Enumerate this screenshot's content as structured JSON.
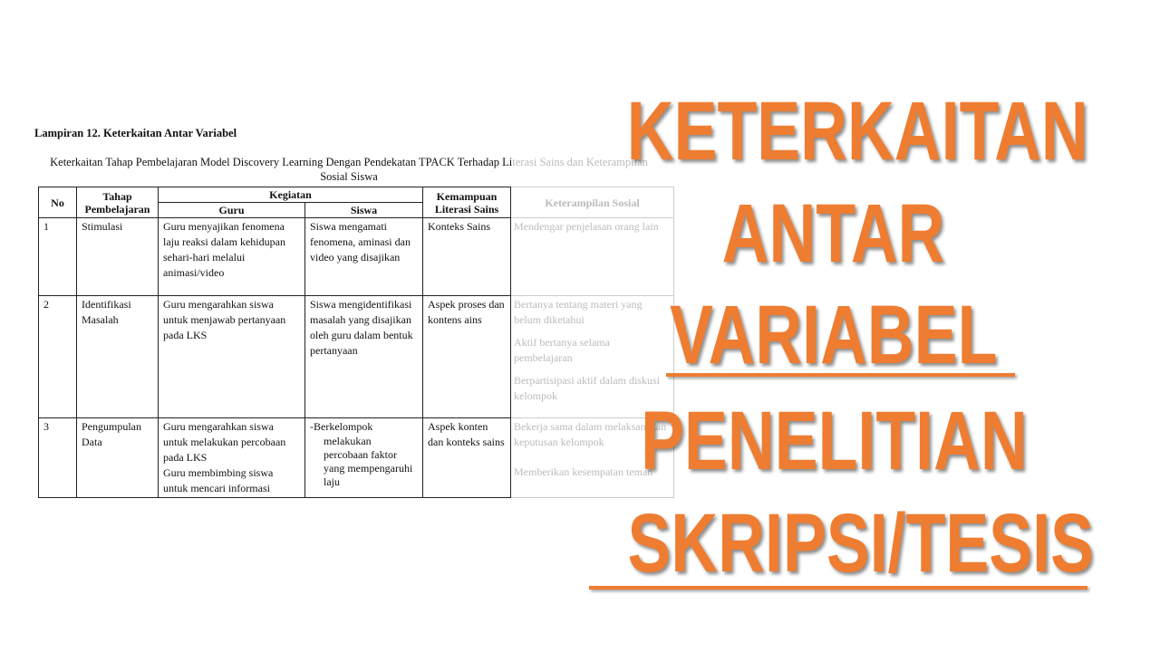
{
  "document": {
    "heading": "Lampiran 12. Keterkaitan Antar Variabel",
    "caption_main": "Keterkaitan Tahap Pembelajaran Model Discovery Learning Dengan Pendekatan TPACK Terhadap Li",
    "caption_faded": "terasi Sains dan Keterampilan",
    "caption_line2": "Sosial Siswa",
    "table": {
      "headers": {
        "no": "No",
        "tahap": "Tahap Pembelajaran",
        "kegiatan": "Kegiatan",
        "guru": "Guru",
        "siswa": "Siswa",
        "literasi": "Kemampuan Literasi Sains",
        "sosial": "Keterampilan Sosial"
      },
      "rows": [
        {
          "no": "1",
          "tahap": "Stimulasi",
          "guru": "Guru menyajikan fenomena laju reaksi dalam kehidupan sehari-hari melalui animasi/video",
          "siswa": "Siswa mengamati fenomena, aminasi dan video yang disajikan",
          "literasi": "Konteks Sains",
          "sosial": [
            "Mendengar penjelasan orang lain"
          ]
        },
        {
          "no": "2",
          "tahap": "Identifikasi Masalah",
          "guru": "Guru mengarahkan siswa untuk menjawab pertanyaan pada LKS",
          "siswa": "Siswa mengidentifikasi masalah yang disajikan oleh guru dalam bentuk pertanyaan",
          "literasi": "Aspek proses dan kontens ains",
          "sosial": [
            "Bertanya tentang materi yang belum diketahui",
            "Aktif bertanya selama pembelajaran",
            "Berpartisipasi aktif dalam diskusi kelompok"
          ]
        },
        {
          "no": "3",
          "tahap": "Pengumpulan Data",
          "guru": "Guru mengarahkan siswa untuk melakukan percobaan pada LKS",
          "guru2": "Guru membimbing siswa untuk mencari informasi",
          "siswa_lead": "-Berkelompok",
          "siswa": "melakukan percobaan faktor yang mempengaruhi laju",
          "literasi": "Aspek konten dan konteks sains",
          "sosial": [
            "Bekerja sama dalam melaksanakan keputusan kelompok",
            "Memberikan kesempatan teman"
          ]
        }
      ]
    }
  },
  "overlay": {
    "lines": [
      "KETERKAITAN",
      "ANTAR",
      "VARIABEL",
      "PENELITIAN",
      "SKRIPSI/TESIS"
    ],
    "color": "#ee7d31"
  }
}
